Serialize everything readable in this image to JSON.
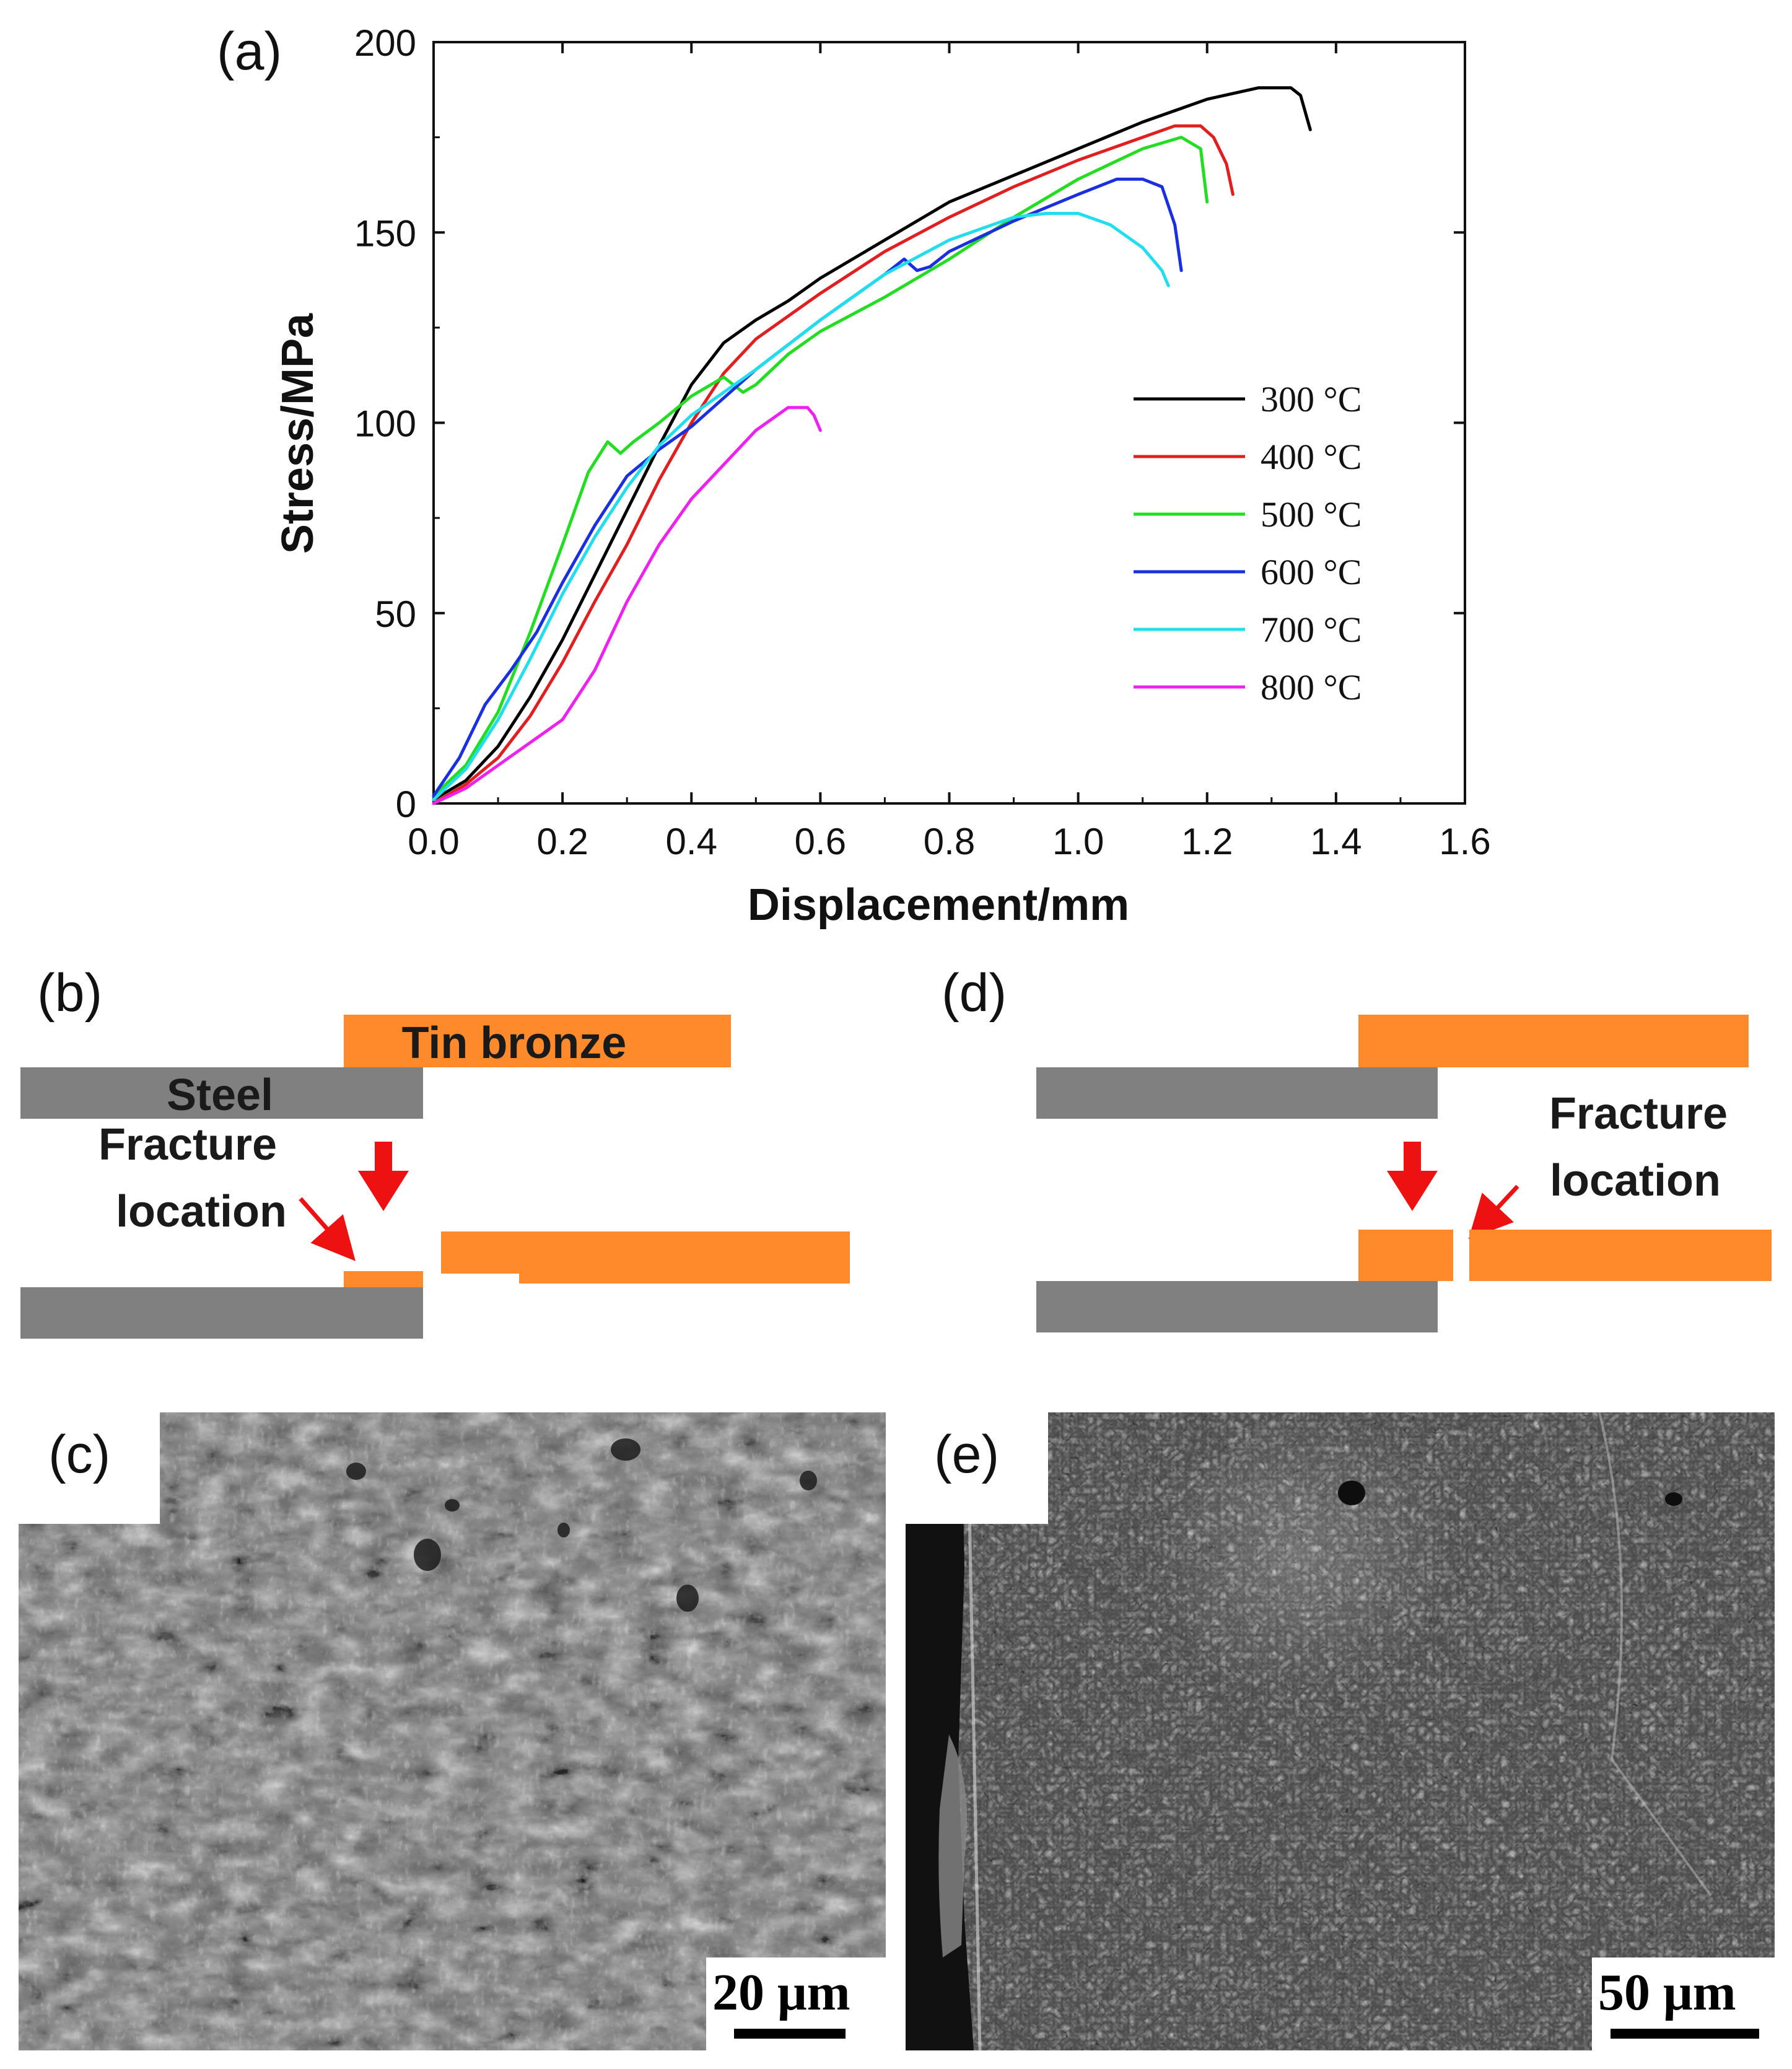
{
  "figure": {
    "panel_labels": {
      "a": "(a)",
      "b": "(b)",
      "c": "(c)",
      "d": "(d)",
      "e": "(e)"
    },
    "colors": {
      "steel": "#808080",
      "bronze": "#ff8a2b",
      "arrow": "#ee1111"
    }
  },
  "chart_data": {
    "type": "line",
    "xlabel": "Displacement/mm",
    "ylabel": "Stress/MPa",
    "xlim": [
      0.0,
      1.6
    ],
    "ylim": [
      0,
      200
    ],
    "xticks": [
      "0.0",
      "0.2",
      "0.4",
      "0.6",
      "0.8",
      "1.0",
      "1.2",
      "1.4",
      "1.6"
    ],
    "yticks": [
      "0",
      "50",
      "100",
      "150",
      "200"
    ],
    "grid": false,
    "legend_position": "center-right",
    "series": [
      {
        "name": "300 °C",
        "color": "#000000",
        "x": [
          0.0,
          0.05,
          0.1,
          0.15,
          0.2,
          0.25,
          0.3,
          0.35,
          0.4,
          0.45,
          0.5,
          0.55,
          0.6,
          0.7,
          0.8,
          0.9,
          1.0,
          1.1,
          1.2,
          1.28,
          1.33,
          1.345,
          1.36
        ],
        "y": [
          1,
          6,
          15,
          28,
          43,
          60,
          77,
          94,
          110,
          121,
          127,
          132,
          138,
          148,
          158,
          165,
          172,
          179,
          185,
          188,
          188,
          186,
          177
        ]
      },
      {
        "name": "400 °C",
        "color": "#e02020",
        "x": [
          0.0,
          0.05,
          0.1,
          0.15,
          0.2,
          0.25,
          0.3,
          0.35,
          0.4,
          0.45,
          0.5,
          0.55,
          0.6,
          0.7,
          0.8,
          0.9,
          1.0,
          1.1,
          1.15,
          1.19,
          1.21,
          1.23,
          1.24
        ],
        "y": [
          0,
          5,
          12,
          23,
          37,
          53,
          68,
          85,
          100,
          113,
          122,
          128,
          134,
          145,
          154,
          162,
          169,
          175,
          178,
          178,
          175,
          168,
          160
        ]
      },
      {
        "name": "500 °C",
        "color": "#22dd22",
        "x": [
          0.0,
          0.05,
          0.1,
          0.15,
          0.2,
          0.24,
          0.27,
          0.29,
          0.31,
          0.35,
          0.4,
          0.45,
          0.48,
          0.5,
          0.55,
          0.6,
          0.7,
          0.8,
          0.9,
          1.0,
          1.1,
          1.16,
          1.19,
          1.2
        ],
        "y": [
          2,
          10,
          24,
          45,
          68,
          87,
          95,
          92,
          95,
          100,
          107,
          112,
          108,
          110,
          118,
          124,
          133,
          143,
          154,
          164,
          172,
          175,
          172,
          158
        ]
      },
      {
        "name": "600 °C",
        "color": "#1a2fe0",
        "x": [
          0.0,
          0.04,
          0.08,
          0.12,
          0.16,
          0.2,
          0.25,
          0.3,
          0.35,
          0.4,
          0.5,
          0.6,
          0.7,
          0.73,
          0.75,
          0.77,
          0.8,
          0.9,
          1.0,
          1.06,
          1.1,
          1.13,
          1.15,
          1.16
        ],
        "y": [
          2,
          12,
          26,
          35,
          45,
          58,
          73,
          86,
          93,
          99,
          114,
          127,
          139,
          143,
          140,
          141,
          145,
          153,
          160,
          164,
          164,
          162,
          152,
          140
        ]
      },
      {
        "name": "700 °C",
        "color": "#22ddee",
        "x": [
          0.0,
          0.05,
          0.1,
          0.15,
          0.2,
          0.25,
          0.3,
          0.35,
          0.4,
          0.5,
          0.6,
          0.7,
          0.8,
          0.9,
          0.95,
          1.0,
          1.05,
          1.1,
          1.13,
          1.14
        ],
        "y": [
          1,
          9,
          22,
          38,
          55,
          70,
          83,
          94,
          102,
          114,
          127,
          139,
          148,
          154,
          155,
          155,
          152,
          146,
          140,
          136
        ]
      },
      {
        "name": "800 °C",
        "color": "#ee22ee",
        "x": [
          0.0,
          0.05,
          0.1,
          0.15,
          0.2,
          0.25,
          0.3,
          0.35,
          0.4,
          0.45,
          0.5,
          0.55,
          0.58,
          0.59,
          0.6
        ],
        "y": [
          0,
          4,
          10,
          16,
          22,
          35,
          53,
          68,
          80,
          89,
          98,
          104,
          104,
          102,
          98
        ]
      }
    ]
  },
  "schematic_b": {
    "labels": {
      "tin_bronze": "Tin bronze",
      "steel": "Steel",
      "fracture": "Fracture",
      "location": "location"
    }
  },
  "schematic_d": {
    "labels": {
      "fracture": "Fracture",
      "location": "location"
    }
  },
  "micrograph_c": {
    "scale_label": "20 μm"
  },
  "micrograph_e": {
    "scale_label": "50 μm"
  }
}
